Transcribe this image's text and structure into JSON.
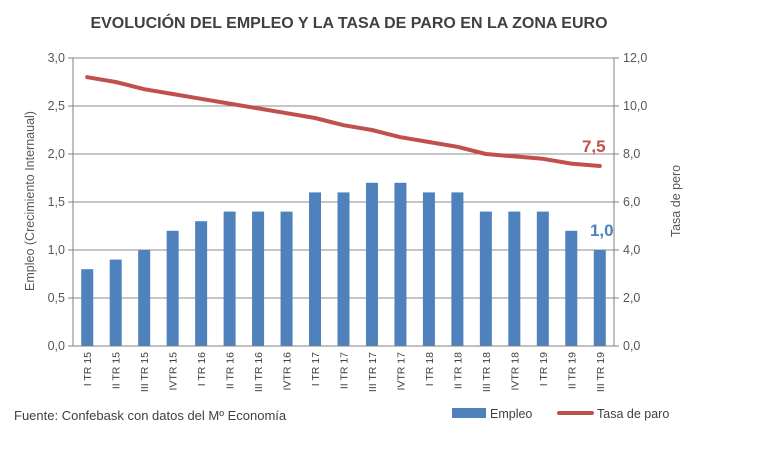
{
  "source_note": "Fuente: Confebask con datos del Mº Economía",
  "chart_data": {
    "type": "bar",
    "title": "EVOLUCIÓN DEL EMPLEO Y LA TASA DE PARO EN LA ZONA EURO",
    "ylabel": "Empleo (Crecimiento Internaual)",
    "y2label": "Tasa de pero",
    "ylim": [
      0,
      3
    ],
    "y2lim": [
      0,
      12
    ],
    "yticks": [
      "0,0",
      "0,5",
      "1,0",
      "1,5",
      "2,0",
      "2,5",
      "3,0"
    ],
    "y2ticks": [
      "0,0",
      "2,0",
      "4,0",
      "6,0",
      "8,0",
      "10,0",
      "12,0"
    ],
    "grid": true,
    "legend_position": "bottom-right",
    "categories": [
      "I TR 15",
      "II TR 15",
      "III TR 15",
      "IVTR 15",
      "I TR 16",
      "II TR 16",
      "III TR 16",
      "IVTR 16",
      "I TR 17",
      "II TR 17",
      "III TR 17",
      "IVTR 17",
      "I TR 18",
      "II TR 18",
      "III TR 18",
      "IVTR 18",
      "I TR 19",
      "II TR 19",
      "III TR 19"
    ],
    "series": [
      {
        "name": "Empleo",
        "type": "bar",
        "axis": "left",
        "color": "#4F81BD",
        "values": [
          0.8,
          0.9,
          1.0,
          1.2,
          1.3,
          1.4,
          1.4,
          1.4,
          1.6,
          1.6,
          1.7,
          1.7,
          1.6,
          1.6,
          1.4,
          1.4,
          1.4,
          1.2,
          1.0
        ]
      },
      {
        "name": "Tasa de paro",
        "type": "line",
        "axis": "right",
        "color": "#C0504D",
        "values": [
          11.2,
          11.0,
          10.7,
          10.5,
          10.3,
          10.1,
          9.9,
          9.7,
          9.5,
          9.2,
          9.0,
          8.7,
          8.5,
          8.3,
          8.0,
          7.9,
          7.8,
          7.6,
          7.5
        ]
      }
    ],
    "annotations": [
      {
        "text": "7,5",
        "series": "Tasa de paro",
        "color": "#C0504D"
      },
      {
        "text": "1,0",
        "series": "Empleo",
        "color": "#4F81BD"
      }
    ]
  }
}
